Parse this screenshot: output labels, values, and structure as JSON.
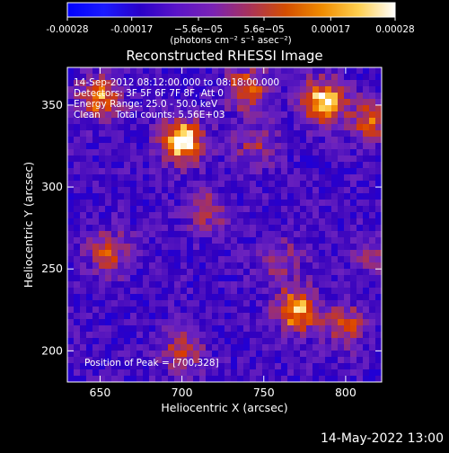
{
  "chart_data": {
    "type": "heatmap",
    "title": "Reconstructed RHESSI Image",
    "xlabel": "Heliocentric X (arcsec)",
    "ylabel": "Heliocentric Y (arcsec)",
    "xlim": [
      630,
      822
    ],
    "ylim": [
      181,
      373
    ],
    "xticks": [
      650,
      700,
      750,
      800
    ],
    "yticks": [
      200,
      250,
      300,
      350
    ],
    "x_tick_labels": [
      "650",
      "700",
      "750",
      "800"
    ],
    "y_tick_labels": [
      "200",
      "250",
      "300",
      "350"
    ],
    "grid": false,
    "colorbar": {
      "range": [
        -0.00028,
        0.00028
      ],
      "tick_values": [
        -0.00028,
        -0.00017,
        -5.6e-05,
        5.6e-05,
        0.00017,
        0.00028
      ],
      "tick_labels": [
        "-0.00028",
        "-0.00017",
        "−5.6e−05",
        "5.6e−05",
        "0.00017",
        "0.00028"
      ],
      "unit_label": "(photons cm⁻² s⁻¹ asec⁻²)",
      "colors": [
        "#0000ff",
        "#1a1aff",
        "#2a00c8",
        "#5a14c8",
        "#7a22b4",
        "#a8325a",
        "#d44e00",
        "#f08c00",
        "#ffd050",
        "#ffffff"
      ]
    },
    "annotations": [
      "14-Sep-2012 08:12:00.000 to 08:18:00.000",
      "Detectors: 3F 5F 6F 7F 8F, Att 0",
      "Energy Range: 25.0 - 50.0 keV",
      "Clean     Total counts: 5.56E+03",
      "Position of Peak = [700,328]"
    ],
    "peak": {
      "x": 700,
      "y": 328
    },
    "bright_sources": [
      {
        "x": 700,
        "y": 328,
        "level": 1.0
      },
      {
        "x": 786,
        "y": 352,
        "level": 0.95
      },
      {
        "x": 650,
        "y": 355,
        "level": 0.7
      },
      {
        "x": 740,
        "y": 360,
        "level": 0.6
      },
      {
        "x": 815,
        "y": 340,
        "level": 0.55
      },
      {
        "x": 770,
        "y": 225,
        "level": 0.85
      },
      {
        "x": 655,
        "y": 260,
        "level": 0.5
      },
      {
        "x": 700,
        "y": 200,
        "level": 0.45
      },
      {
        "x": 800,
        "y": 215,
        "level": 0.5
      },
      {
        "x": 715,
        "y": 285,
        "level": 0.4
      },
      {
        "x": 760,
        "y": 255,
        "level": 0.35
      },
      {
        "x": 745,
        "y": 325,
        "level": 0.35
      },
      {
        "x": 818,
        "y": 260,
        "level": 0.3
      }
    ]
  },
  "footer_date": "14-May-2022 13:00"
}
